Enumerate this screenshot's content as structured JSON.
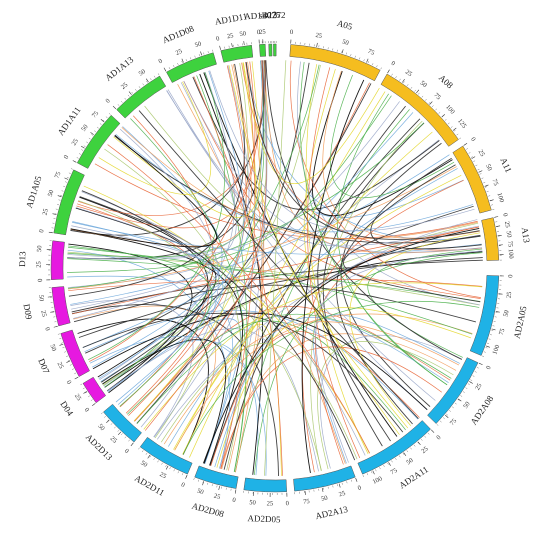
{
  "colors": {
    "A": "#f5bd1f",
    "AD1": "#3ed23e",
    "D": "#e619e0",
    "AD2": "#1fb2e6",
    "links": [
      "#e8673a",
      "#f29a57",
      "#2f2f2f",
      "#000000",
      "#6fa8dc",
      "#4bb04b",
      "#e3d72e",
      "#9aa7c9",
      "#a8c66c"
    ]
  },
  "segments": [
    {
      "name": "A05",
      "group": "A",
      "ticks": [
        "0",
        "25",
        "50",
        "75"
      ]
    },
    {
      "name": "A08",
      "group": "A",
      "ticks": [
        "0",
        "25",
        "50",
        "75",
        "100",
        "125"
      ]
    },
    {
      "name": "A11",
      "group": "A",
      "ticks": [
        "0",
        "25",
        "50",
        "75",
        "100"
      ]
    },
    {
      "name": "A13",
      "group": "A",
      "ticks": [
        "0",
        "25",
        "50",
        "75",
        "100"
      ]
    },
    {
      "name": "AD2A05",
      "group": "AD2",
      "ticks": [
        "0",
        "25",
        "50",
        "75",
        "100"
      ]
    },
    {
      "name": "AD2A08",
      "group": "AD2",
      "ticks": [
        "0",
        "25",
        "50",
        "75"
      ]
    },
    {
      "name": "AD2A11",
      "group": "AD2",
      "ticks": [
        "0",
        "25",
        "50",
        "75",
        "100"
      ]
    },
    {
      "name": "AD2A13",
      "group": "AD2",
      "ticks": [
        "0",
        "25",
        "50",
        "75"
      ]
    },
    {
      "name": "AD2D05",
      "group": "AD2",
      "ticks": [
        "0",
        "25",
        "50"
      ]
    },
    {
      "name": "AD2D08",
      "group": "AD2",
      "ticks": [
        "0",
        "25",
        "50"
      ]
    },
    {
      "name": "AD2D11",
      "group": "AD2",
      "ticks": [
        "0",
        "25",
        "50"
      ]
    },
    {
      "name": "AD2D13",
      "group": "AD2",
      "ticks": [
        "0",
        "25",
        "50"
      ]
    },
    {
      "name": "D04",
      "group": "D",
      "ticks": [
        "0",
        "25"
      ]
    },
    {
      "name": "D07",
      "group": "D",
      "ticks": [
        "0",
        "25",
        "50"
      ]
    },
    {
      "name": "D09",
      "group": "D",
      "ticks": [
        "0",
        "25",
        "50"
      ]
    },
    {
      "name": "D13",
      "group": "D",
      "ticks": [
        "0",
        "25",
        "50"
      ]
    },
    {
      "name": "AD1A05",
      "group": "AD1",
      "ticks": [
        "0",
        "25",
        "50",
        "75"
      ]
    },
    {
      "name": "AD1A11",
      "group": "AD1",
      "ticks": [
        "0",
        "25",
        "50",
        "75"
      ]
    },
    {
      "name": "AD1A13",
      "group": "AD1",
      "ticks": [
        "0",
        "25",
        "50"
      ]
    },
    {
      "name": "AD1D08",
      "group": "AD1",
      "ticks": [
        "0",
        "25",
        "50"
      ]
    },
    {
      "name": "AD1D11",
      "group": "AD1",
      "ticks": [
        "0",
        "25",
        "50"
      ]
    },
    {
      "name": "AD1D13",
      "group": "AD1",
      "ticks": [
        "0",
        "25"
      ]
    },
    {
      "name": "s4075",
      "group": "AD1",
      "ticks": []
    },
    {
      "name": "s2272",
      "group": "AD1",
      "ticks": []
    }
  ],
  "link_count": 160
}
